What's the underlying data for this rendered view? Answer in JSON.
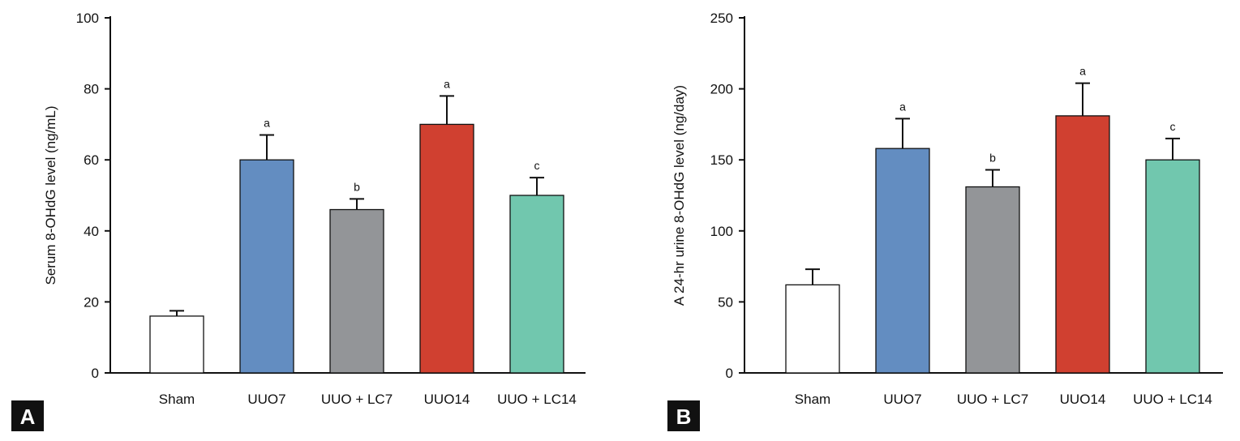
{
  "chart_data": [
    {
      "type": "bar",
      "panel_label": "A",
      "categories": [
        "Sham",
        "UUO7",
        "UUO + LC7",
        "UUO14",
        "UUO + LC14"
      ],
      "values": [
        16,
        60,
        46,
        70,
        50
      ],
      "errors": [
        1.5,
        7,
        3,
        8,
        5
      ],
      "significance": [
        "",
        "a",
        "b",
        "a",
        "c"
      ],
      "ylabel": "Serum 8-OHdG level (ng/mL)",
      "ylim": [
        0,
        100
      ],
      "yticks": [
        0,
        20,
        40,
        60,
        80,
        100
      ],
      "grid": false
    },
    {
      "type": "bar",
      "panel_label": "B",
      "categories": [
        "Sham",
        "UUO7",
        "UUO + LC7",
        "UUO14",
        "UUO + LC14"
      ],
      "values": [
        62,
        158,
        131,
        181,
        150
      ],
      "errors": [
        11,
        21,
        12,
        23,
        15
      ],
      "significance": [
        "",
        "a",
        "b",
        "a",
        "c"
      ],
      "ylabel": "A 24-hr urine 8-OHdG level (ng/day)",
      "ylim": [
        0,
        250
      ],
      "yticks": [
        0,
        50,
        100,
        150,
        200,
        250
      ],
      "grid": false
    }
  ],
  "bar_colors": [
    "#ffffff",
    "#638dc1",
    "#939598",
    "#d04030",
    "#71c7ae"
  ],
  "badge_color": "#111111"
}
